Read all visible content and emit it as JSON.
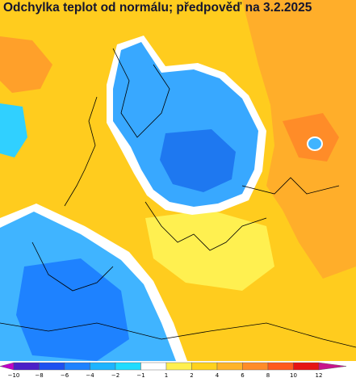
{
  "header": {
    "title": "Odchylka teplot od normálu; předpověď na 3.2.2025"
  },
  "legend": {
    "labels": [
      "−10",
      "−8",
      "−6",
      "−4",
      "−2",
      "−1",
      "1",
      "2",
      "4",
      "6",
      "8",
      "10",
      "12"
    ],
    "colors": [
      "#c000c8",
      "#4b20c8",
      "#1e50f0",
      "#1e82ff",
      "#1eb4ff",
      "#20dcff",
      "#ffffff",
      "#fff050",
      "#ffd21e",
      "#ffb428",
      "#ff8c28",
      "#ff5a1e",
      "#e61414",
      "#c8148c"
    ]
  }
}
